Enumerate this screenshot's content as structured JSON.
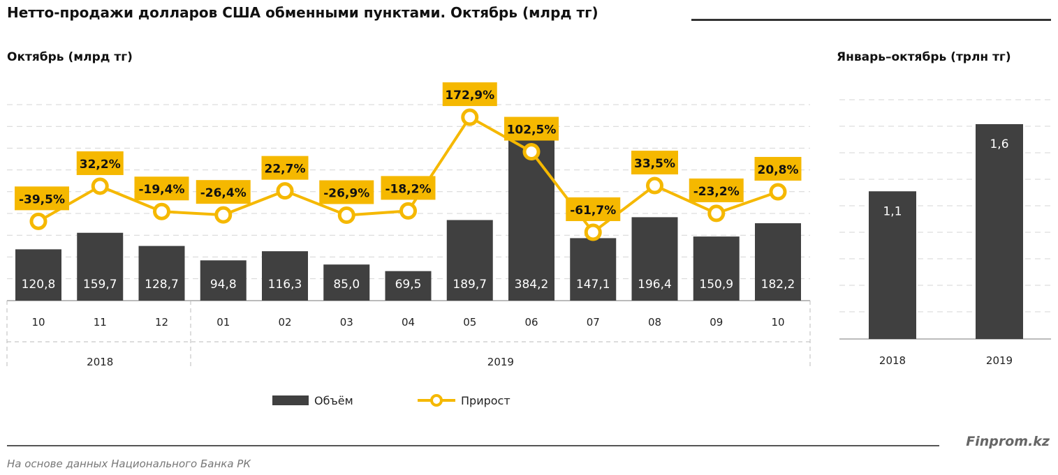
{
  "title": "Нетто-продажи долларов США обменными пунктами. Октябрь (млрд тг)",
  "footer": {
    "brand": "Finprom.kz",
    "source": "На основе данных  Национального  Банка РК"
  },
  "colors": {
    "bar": "#404040",
    "line": "#F5B800",
    "label_bg": "#F5B800"
  },
  "chart_data": [
    {
      "type": "bar+line",
      "title": "Октябрь  (млрд тг)",
      "categories": [
        "10",
        "11",
        "12",
        "01",
        "02",
        "03",
        "04",
        "05",
        "06",
        "07",
        "08",
        "09",
        "10"
      ],
      "groups": [
        {
          "label": "2018",
          "count": 3
        },
        {
          "label": "2019",
          "count": 10
        }
      ],
      "series": [
        {
          "name": "Объём",
          "type": "bar",
          "values": [
            120.8,
            159.7,
            128.7,
            94.8,
            116.3,
            85.0,
            69.5,
            189.7,
            384.2,
            147.1,
            196.4,
            150.9,
            182.2
          ],
          "labels": [
            "120,8",
            "159,7",
            "128,7",
            "94,8",
            "116,3",
            "85,0",
            "69,5",
            "189,7",
            "384,2",
            "147,1",
            "196,4",
            "150,9",
            "182,2"
          ]
        },
        {
          "name": "Прирост",
          "type": "line",
          "values": [
            -39.5,
            32.2,
            -19.4,
            -26.4,
            22.7,
            -26.9,
            -18.2,
            172.9,
            102.5,
            -61.7,
            33.5,
            -23.2,
            20.8
          ],
          "labels": [
            "-39,5%",
            "32,2%",
            "-19,4%",
            "-26,4%",
            "22,7%",
            "-26,9%",
            "-18,2%",
            "172,9%",
            "102,5%",
            "-61,7%",
            "33,5%",
            "-23,2%",
            "20,8%"
          ]
        }
      ],
      "grid": true,
      "legend": "bottom"
    },
    {
      "type": "bar",
      "title": "Январь–октябрь  (трлн тг)",
      "categories": [
        "2018",
        "2019"
      ],
      "values": [
        1.1,
        1.6
      ],
      "labels": [
        "1,1",
        "1,6"
      ],
      "grid": true
    }
  ]
}
